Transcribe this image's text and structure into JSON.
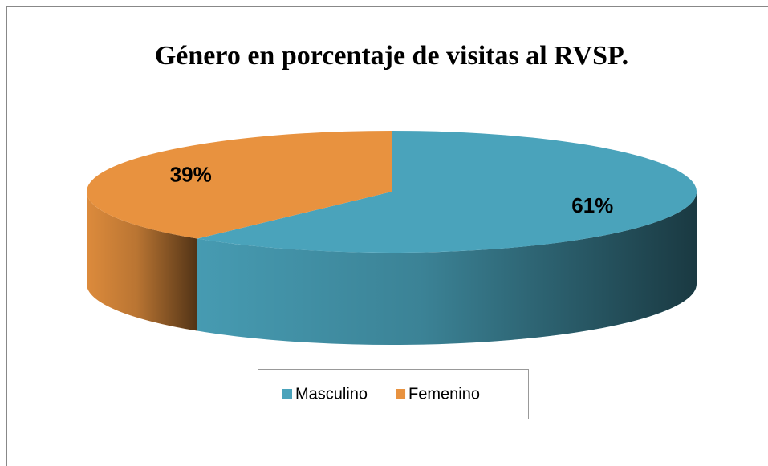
{
  "chart_data": {
    "type": "pie3d",
    "title": "Género en porcentaje de visitas al RVSP.",
    "categories": [
      "Masculino",
      "Femenino"
    ],
    "values": [
      61,
      39
    ],
    "value_labels": [
      "61%",
      "39%"
    ],
    "colors": [
      "#4aa3bb",
      "#e8923f"
    ],
    "legend": "bottom"
  }
}
